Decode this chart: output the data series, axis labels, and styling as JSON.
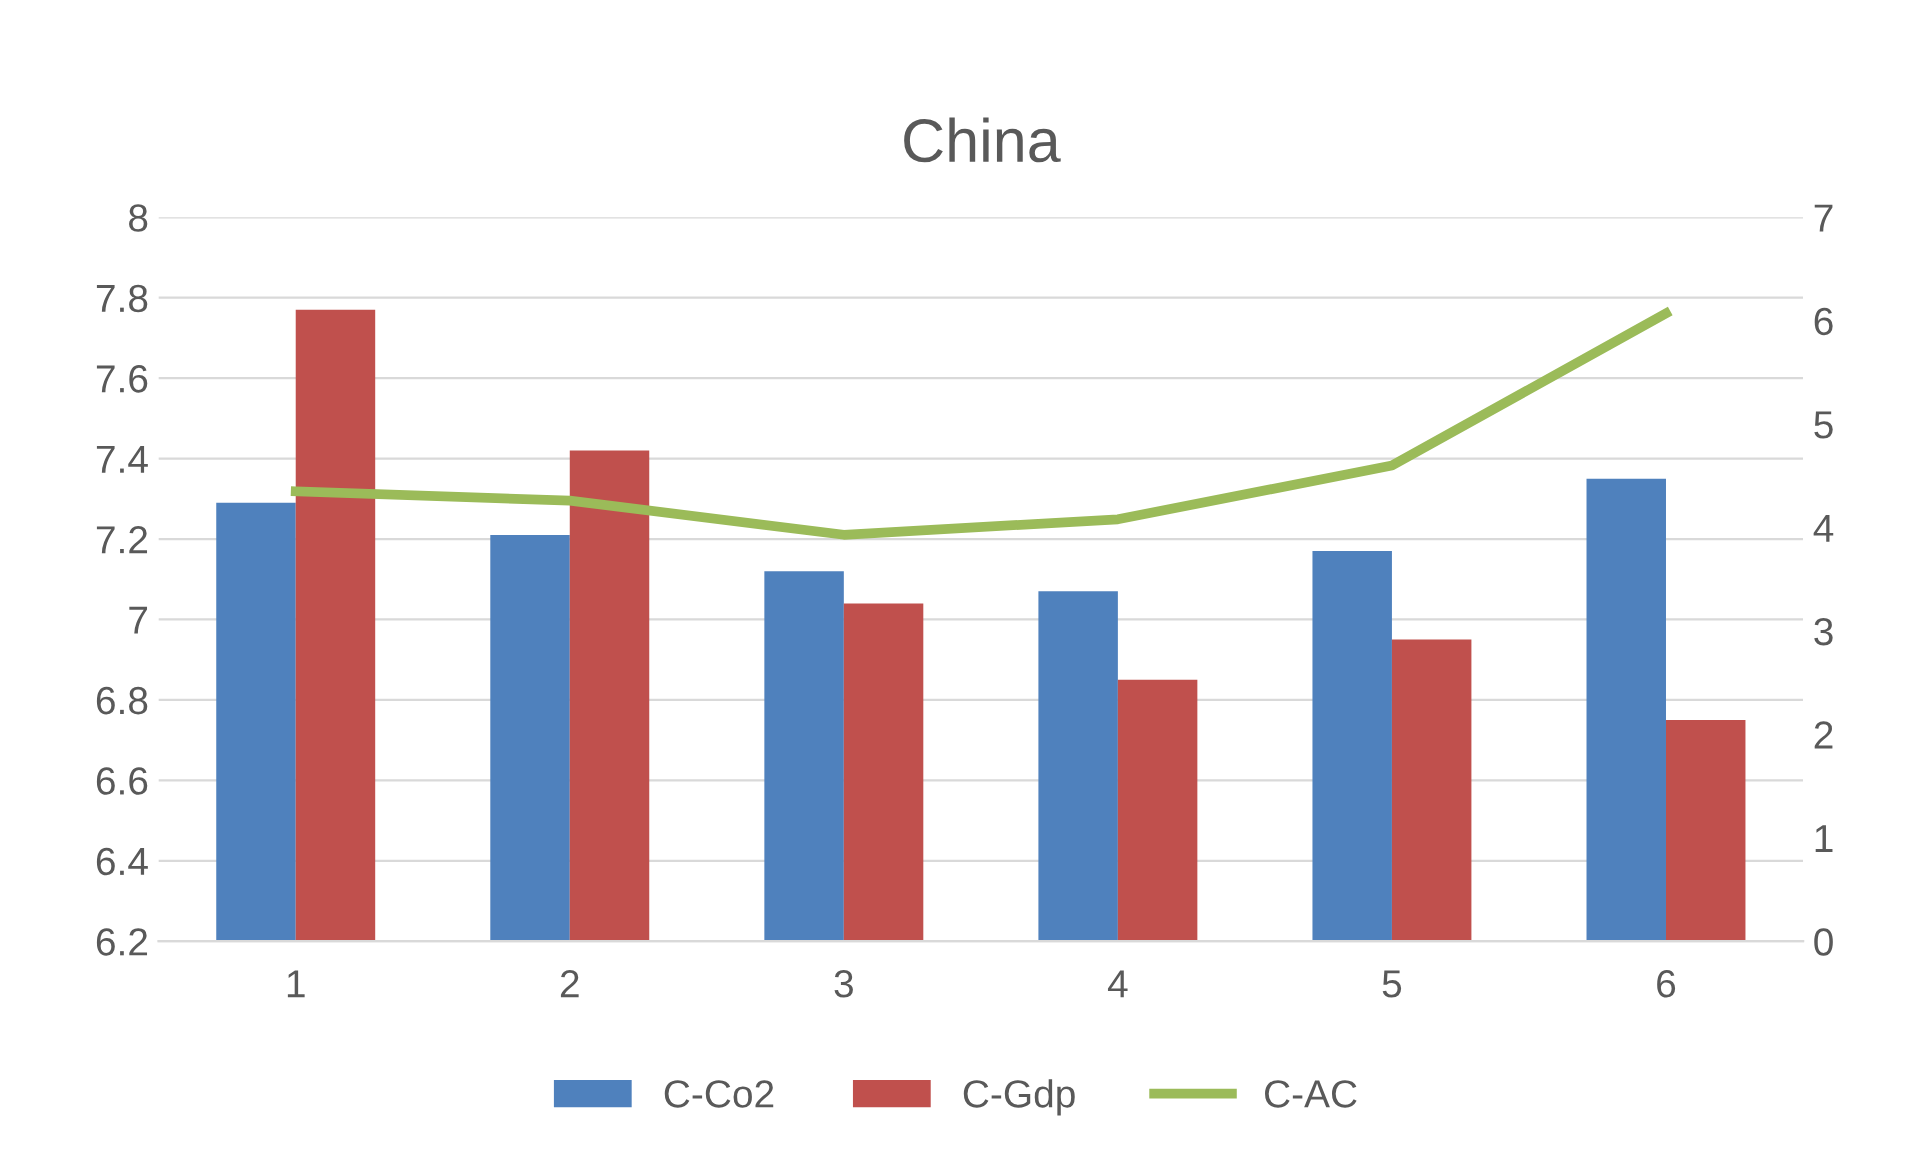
{
  "chart_data": {
    "type": "bar",
    "title": "China",
    "categories": [
      "1",
      "2",
      "3",
      "4",
      "5",
      "6"
    ],
    "series": [
      {
        "name": "C-Co2",
        "color": "#4f81bd",
        "values": [
          7.29,
          7.21,
          7.12,
          7.07,
          7.17,
          7.35
        ]
      },
      {
        "name": "C-Gdp",
        "color": "#c0504d",
        "values": [
          7.77,
          7.42,
          7.04,
          6.85,
          6.95,
          6.75
        ]
      },
      {
        "name": "C-AC",
        "type": "line",
        "axis": "y2",
        "color": "#9bbb59",
        "values": [
          4.35,
          4.26,
          3.93,
          4.08,
          4.6,
          6.07
        ]
      }
    ],
    "ylim": [
      6.2,
      8
    ],
    "yticks": [
      6.2,
      6.4,
      6.6,
      6.8,
      7,
      7.2,
      7.4,
      7.6,
      7.8,
      8
    ],
    "y2lim": [
      0,
      7
    ],
    "y2ticks": [
      0,
      1,
      2,
      3,
      4,
      5,
      6,
      7
    ],
    "grid": "y",
    "legend": "bottom",
    "marker": "none"
  }
}
